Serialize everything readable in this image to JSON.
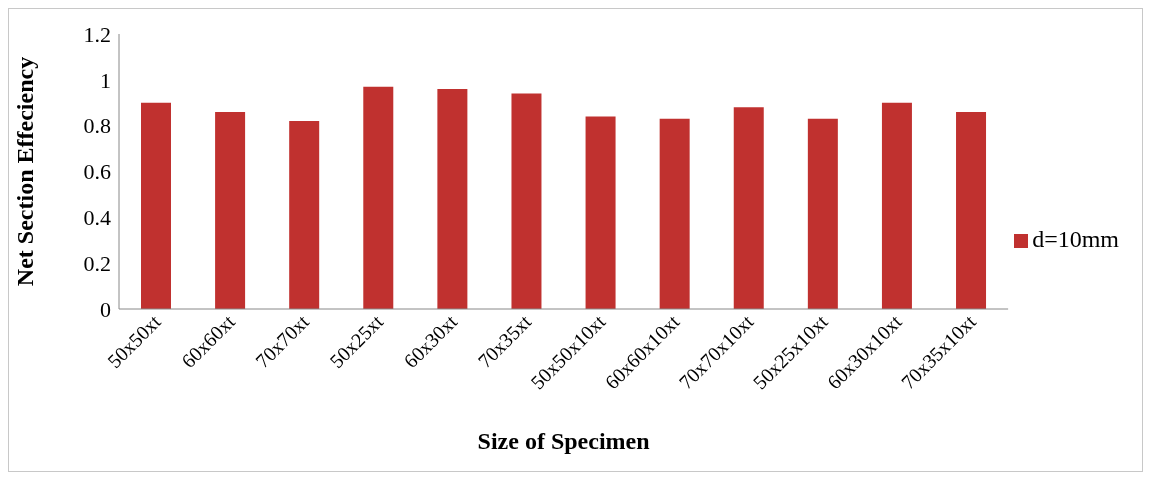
{
  "chart_data": {
    "type": "bar",
    "xlabel": "Size of Specimen",
    "ylabel": "Net Section Effeciency",
    "categories": [
      "50x50xt",
      "60x60xt",
      "70x70xt",
      "50x25xt",
      "60x30xt",
      "70x35xt",
      "50x50x10xt",
      "60x60x10xt",
      "70x70x10xt",
      "50x25x10xt",
      "60x30x10xt",
      "70x35x10xt"
    ],
    "series": [
      {
        "name": "d=10mm",
        "color": "#c0312f",
        "values": [
          0.9,
          0.86,
          0.82,
          0.97,
          0.96,
          0.94,
          0.84,
          0.83,
          0.88,
          0.83,
          0.9,
          0.86
        ]
      }
    ],
    "ylim": [
      0,
      1.2
    ],
    "yticks": [
      0,
      0.2,
      0.4,
      0.6,
      0.8,
      1,
      1.2
    ],
    "grid": false,
    "legend": "right"
  }
}
